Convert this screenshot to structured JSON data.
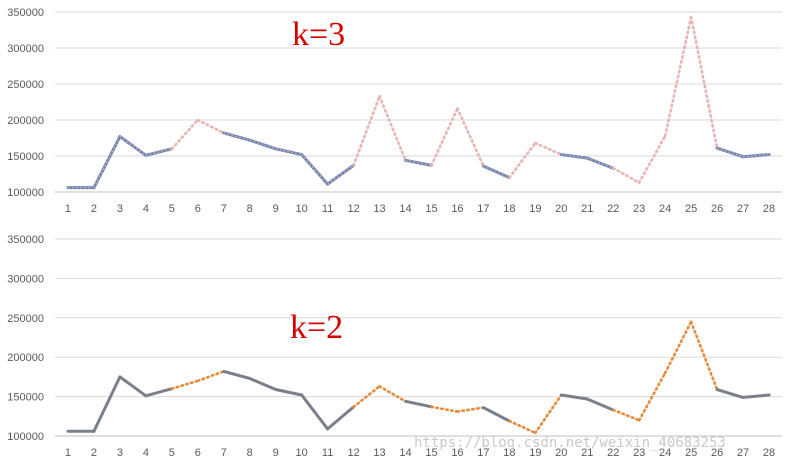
{
  "colors": {
    "grid": "#d9d9d9",
    "axis": "#bfbfbf",
    "top_solid": "#6f87b3",
    "top_dotted": "#e8b4b2",
    "bottom_solid": "#7a7f8c",
    "bottom_dotted": "#e68a3c",
    "annotation": "#d40000",
    "watermark": "#c8c8c8"
  },
  "watermark": "https://blog.csdn.net/weixin_40683253",
  "chart_data": [
    {
      "type": "line",
      "title": "",
      "annotation": "k=3",
      "x": [
        "1",
        "2",
        "3",
        "4",
        "5",
        "6",
        "7",
        "8",
        "9",
        "10",
        "11",
        "12",
        "13",
        "14",
        "15",
        "16",
        "17",
        "18",
        "19",
        "20",
        "21",
        "22",
        "23",
        "24",
        "25",
        "26",
        "27",
        "28"
      ],
      "y": [
        106000,
        106000,
        177000,
        151000,
        160000,
        200000,
        182000,
        172000,
        160000,
        152000,
        111000,
        137000,
        233000,
        144000,
        137000,
        216000,
        136000,
        120000,
        168000,
        152000,
        147000,
        133000,
        113000,
        178000,
        343000,
        161000,
        149000,
        152000
      ],
      "segment_styles": [
        "solid",
        "solid",
        "solid",
        "solid",
        "dotted",
        "dotted",
        "solid",
        "solid",
        "solid",
        "solid",
        "solid",
        "dotted",
        "dotted",
        "solid",
        "dotted",
        "dotted",
        "solid",
        "dotted",
        "dotted",
        "solid",
        "solid",
        "dotted",
        "dotted",
        "dotted",
        "dotted",
        "solid",
        "solid"
      ],
      "ylim": [
        100000,
        350000
      ],
      "yticks": [
        "100000",
        "150000",
        "200000",
        "250000",
        "300000",
        "350000"
      ],
      "grid": true
    },
    {
      "type": "line",
      "title": "",
      "annotation": "k=2",
      "x": [
        "1",
        "2",
        "3",
        "4",
        "5",
        "6",
        "7",
        "8",
        "9",
        "10",
        "11",
        "12",
        "13",
        "14",
        "15",
        "16",
        "17",
        "18",
        "19",
        "20",
        "21",
        "22",
        "23",
        "24",
        "25",
        "26",
        "27",
        "28"
      ],
      "y": [
        106000,
        106000,
        175000,
        151000,
        160000,
        170000,
        182000,
        173000,
        159000,
        152000,
        109000,
        137000,
        163000,
        144000,
        137000,
        131000,
        136000,
        119000,
        104000,
        152000,
        147000,
        133000,
        120000,
        180000,
        245000,
        159000,
        149000,
        152000
      ],
      "segment_styles": [
        "solid",
        "solid",
        "solid",
        "solid",
        "dotted",
        "dotted",
        "solid",
        "solid",
        "solid",
        "solid",
        "solid",
        "dotted",
        "dotted",
        "solid",
        "dotted",
        "dotted",
        "solid",
        "dotted",
        "dotted",
        "solid",
        "solid",
        "dotted",
        "dotted",
        "dotted",
        "dotted",
        "solid",
        "solid"
      ],
      "ylim": [
        100000,
        350000
      ],
      "yticks": [
        "100000",
        "150000",
        "200000",
        "250000",
        "300000",
        "350000"
      ],
      "grid": true
    }
  ]
}
